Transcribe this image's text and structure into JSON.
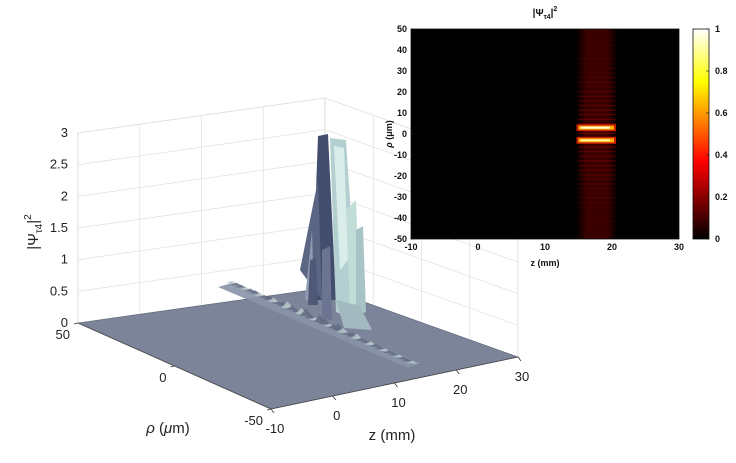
{
  "chart_data": [
    {
      "type": "surface",
      "zlabel_base": "|Ψ",
      "zlabel_sub": "τ4",
      "zlabel_tail": "|",
      "zlabel_sup": "2",
      "ylabel_pre": "ρ (",
      "ylabel_mu": "μ",
      "ylabel_post": "m)",
      "xlabel": "z (mm)",
      "z_ticks": [
        "0",
        "0.5",
        "1",
        "1.5",
        "2",
        "2.5",
        "3"
      ],
      "rho_ticks": [
        "50",
        "0",
        "-50"
      ],
      "zmm_ticks": [
        "-10",
        "0",
        "10",
        "20",
        "30"
      ],
      "zlim": [
        0,
        3
      ],
      "rho_lim": [
        -50,
        50
      ],
      "zmm_lim": [
        -10,
        30
      ],
      "peak": {
        "z_mm": 17,
        "rho_um": 0,
        "value": 2.95
      },
      "surface_color": "#7b8499",
      "highlight_color": "#c9e6e3"
    },
    {
      "type": "heatmap",
      "title_base": "|Ψ",
      "title_sub": "τ4",
      "title_tail": "|",
      "title_sup": "2",
      "xlabel": "z (mm)",
      "ylabel_pre": "ρ (",
      "ylabel_mu": "μ",
      "ylabel_post": "m)",
      "x_ticks": [
        "-10",
        "0",
        "10",
        "20",
        "30"
      ],
      "y_ticks": [
        "50",
        "40",
        "30",
        "20",
        "10",
        "0",
        "-10",
        "-20",
        "-30",
        "-40",
        "-50"
      ],
      "colorbar_ticks": [
        "1",
        "0.8",
        "0.6",
        "0.4",
        "0.2",
        "0"
      ],
      "xlim": [
        -10,
        30
      ],
      "ylim": [
        -50,
        50
      ],
      "clim": [
        0,
        1
      ],
      "colormap": "hot",
      "hot_spots": [
        {
          "z_start": 15,
          "z_end": 20,
          "rho": 3,
          "value": 1.0
        },
        {
          "z_start": 15,
          "z_end": 20,
          "rho": -3,
          "value": 0.95
        }
      ],
      "band": {
        "z_start": 14.5,
        "z_end": 21,
        "rho_extent": 50,
        "value": 0.12
      }
    }
  ]
}
